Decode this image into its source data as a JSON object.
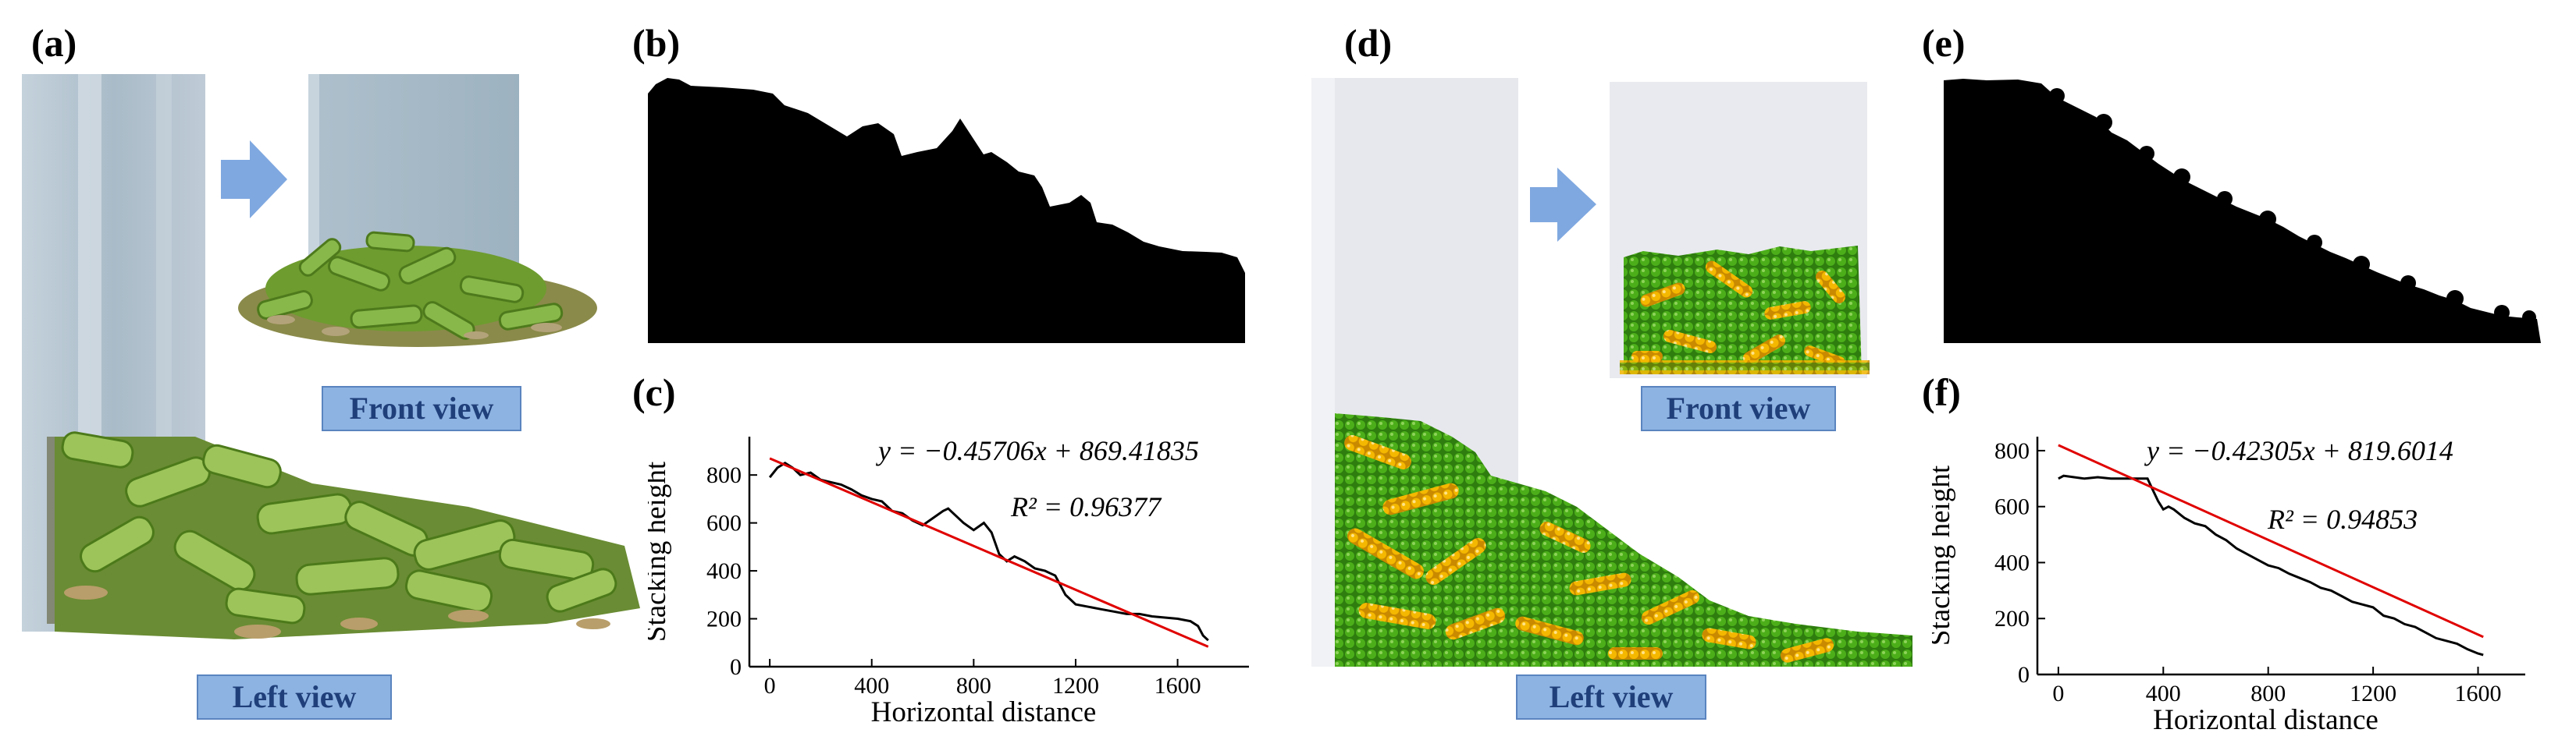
{
  "panels": {
    "a": {
      "letter": "(a)",
      "front_label": "Front view",
      "left_label": "Left view"
    },
    "b": {
      "letter": "(b)"
    },
    "c": {
      "letter": "(c)"
    },
    "d": {
      "letter": "(d)",
      "front_label": "Front view",
      "left_label": "Left view"
    },
    "e": {
      "letter": "(e)"
    },
    "f": {
      "letter": "(f)"
    }
  },
  "colors": {
    "arrow": "#7fa8e0",
    "label_bg": "#8db3e2",
    "stem_green": "#6b9a2e",
    "particle_green": "#3f9a12",
    "particle_yellow": "#f2b705",
    "fit_line": "#e00000",
    "data_line": "#000000"
  },
  "chart_data": [
    {
      "panel": "(c)",
      "type": "line",
      "xlabel": "Horizontal distance",
      "ylabel": "Stacking height",
      "xlim": [
        -80,
        1880
      ],
      "ylim": [
        0,
        960
      ],
      "xticks": [
        "0",
        "400",
        "800",
        "1200",
        "1600"
      ],
      "yticks": [
        "0",
        "200",
        "400",
        "600",
        "800"
      ],
      "equation_text": "y = −0.45706x + 869.41835",
      "r2_text": "R² = 0.96377",
      "fit": {
        "slope": -0.45706,
        "intercept": 869.41835,
        "x_range": [
          0,
          1720
        ]
      },
      "series": [
        {
          "x": [
            0,
            30,
            60,
            90,
            120,
            160,
            200,
            240,
            280,
            320,
            360,
            400,
            440,
            480,
            520,
            560,
            600,
            640,
            680,
            700,
            720,
            760,
            800,
            840,
            870,
            900,
            930,
            960,
            1000,
            1040,
            1080,
            1100,
            1120,
            1160,
            1200,
            1250,
            1300,
            1350,
            1400,
            1450,
            1500,
            1550,
            1600,
            1650,
            1680,
            1700,
            1720
          ],
          "y": [
            790,
            830,
            850,
            830,
            800,
            810,
            780,
            770,
            760,
            740,
            715,
            700,
            690,
            650,
            640,
            610,
            590,
            620,
            650,
            660,
            640,
            600,
            570,
            600,
            560,
            470,
            440,
            460,
            440,
            410,
            400,
            390,
            380,
            300,
            260,
            250,
            240,
            230,
            220,
            220,
            210,
            205,
            200,
            190,
            170,
            130,
            110
          ]
        }
      ]
    },
    {
      "panel": "(f)",
      "type": "line",
      "xlabel": "Horizontal distance",
      "ylabel": "Stacking height",
      "xlim": [
        -80,
        1780
      ],
      "ylim": [
        0,
        850
      ],
      "xticks": [
        "0",
        "400",
        "800",
        "1200",
        "1600"
      ],
      "yticks": [
        "0",
        "200",
        "400",
        "600",
        "800"
      ],
      "equation_text": "y = −0.42305x + 819.6014",
      "r2_text": "R² = 0.94853",
      "fit": {
        "slope": -0.42305,
        "intercept": 819.6014,
        "x_range": [
          0,
          1620
        ]
      },
      "series": [
        {
          "x": [
            0,
            20,
            60,
            100,
            150,
            200,
            250,
            300,
            340,
            360,
            380,
            400,
            420,
            440,
            480,
            520,
            560,
            600,
            640,
            680,
            720,
            760,
            800,
            840,
            880,
            920,
            960,
            1000,
            1040,
            1080,
            1120,
            1160,
            1200,
            1240,
            1280,
            1320,
            1360,
            1400,
            1440,
            1480,
            1520,
            1560,
            1600,
            1620
          ],
          "y": [
            700,
            710,
            705,
            700,
            705,
            700,
            700,
            700,
            700,
            660,
            620,
            590,
            600,
            590,
            560,
            540,
            530,
            500,
            480,
            450,
            430,
            410,
            390,
            380,
            360,
            345,
            330,
            310,
            300,
            280,
            260,
            250,
            240,
            210,
            200,
            180,
            170,
            150,
            130,
            120,
            110,
            90,
            75,
            70
          ]
        }
      ]
    }
  ]
}
